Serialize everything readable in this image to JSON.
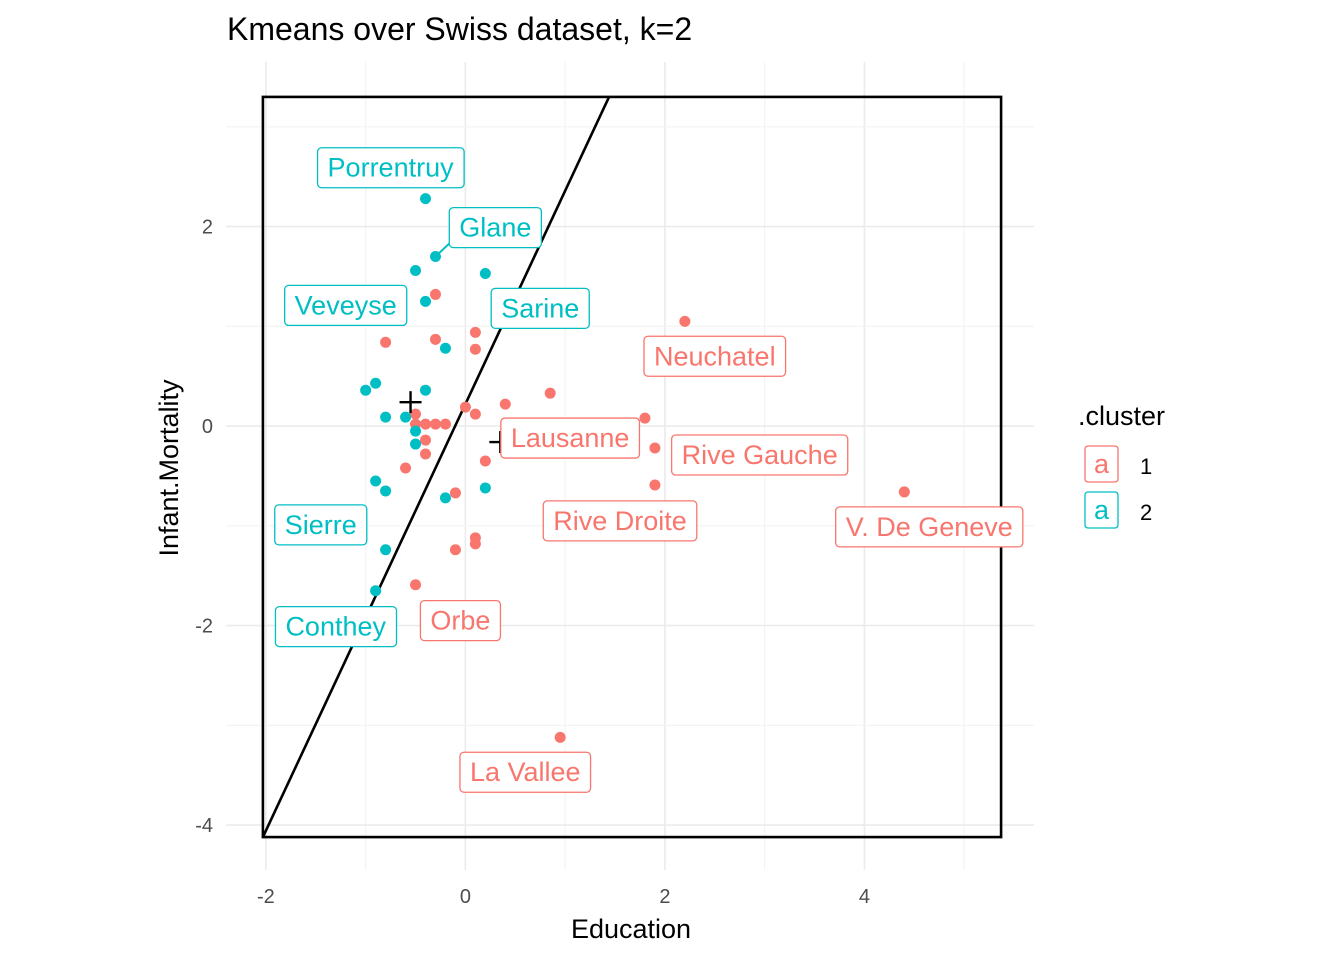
{
  "chart_data": {
    "type": "scatter",
    "title": "Kmeans over Swiss dataset, k=2",
    "xlabel": "Education",
    "ylabel": "Infant.Mortality",
    "xlim": [
      -2.4,
      5.7
    ],
    "ylim": [
      -4.45,
      3.65
    ],
    "x_ticks": [
      -2,
      0,
      2,
      4
    ],
    "x_tick_labels": [
      "-2",
      "0",
      "2",
      "4"
    ],
    "y_ticks": [
      -4,
      -2,
      0,
      2
    ],
    "y_tick_labels": [
      "-4",
      "-2",
      "0",
      "2"
    ],
    "grid": true,
    "legend": {
      "title": ".cluster",
      "position": "right",
      "key_glyph": "a",
      "entries": [
        {
          "name": "1",
          "color": "#f8766d"
        },
        {
          "name": "2",
          "color": "#00bfc4"
        }
      ]
    },
    "colors": {
      "cluster_1": "#f8766d",
      "cluster_2": "#00bfc4"
    },
    "series": [
      {
        "name": "1",
        "color": "#f8766d",
        "points": [
          {
            "x": -0.5,
            "y": 0.12
          },
          {
            "x": -0.5,
            "y": 0.02
          },
          {
            "x": -0.4,
            "y": 0.02
          },
          {
            "x": -0.3,
            "y": 0.02
          },
          {
            "x": -0.2,
            "y": 0.02
          },
          {
            "x": 0.0,
            "y": 0.19
          },
          {
            "x": 0.1,
            "y": 0.12
          },
          {
            "x": -0.4,
            "y": -0.14
          },
          {
            "x": -0.4,
            "y": -0.28
          },
          {
            "x": -0.6,
            "y": -0.42
          },
          {
            "x": 0.2,
            "y": -0.35
          },
          {
            "x": -0.1,
            "y": -0.67
          },
          {
            "x": 0.1,
            "y": -1.12
          },
          {
            "x": 0.1,
            "y": -1.18
          },
          {
            "x": -0.1,
            "y": -1.24
          },
          {
            "x": -0.5,
            "y": -1.59
          },
          {
            "x": 0.1,
            "y": 0.94
          },
          {
            "x": 0.1,
            "y": 0.77
          },
          {
            "x": -0.3,
            "y": 0.87
          },
          {
            "x": -0.3,
            "y": 1.32
          },
          {
            "x": -0.8,
            "y": 0.84
          },
          {
            "x": 0.4,
            "y": 0.22
          },
          {
            "x": 0.85,
            "y": 0.33
          },
          {
            "x": 1.8,
            "y": 0.08
          },
          {
            "x": 1.9,
            "y": -0.22
          },
          {
            "x": 1.9,
            "y": -0.59
          },
          {
            "x": 2.2,
            "y": 1.05
          },
          {
            "x": 4.4,
            "y": -0.66
          },
          {
            "x": 0.95,
            "y": -3.12
          }
        ]
      },
      {
        "name": "2",
        "color": "#00bfc4",
        "points": [
          {
            "x": -0.4,
            "y": 2.28
          },
          {
            "x": -0.3,
            "y": 1.7
          },
          {
            "x": -0.5,
            "y": 1.56
          },
          {
            "x": 0.2,
            "y": 1.53
          },
          {
            "x": -0.4,
            "y": 1.25
          },
          {
            "x": -0.2,
            "y": 0.78
          },
          {
            "x": -0.9,
            "y": 0.43
          },
          {
            "x": -1.0,
            "y": 0.36
          },
          {
            "x": -0.4,
            "y": 0.36
          },
          {
            "x": -0.8,
            "y": 0.09
          },
          {
            "x": -0.6,
            "y": 0.09
          },
          {
            "x": -0.5,
            "y": -0.05
          },
          {
            "x": -0.5,
            "y": -0.18
          },
          {
            "x": -0.9,
            "y": -0.55
          },
          {
            "x": -0.8,
            "y": -0.65
          },
          {
            "x": -0.2,
            "y": -0.72
          },
          {
            "x": 0.2,
            "y": -0.62
          },
          {
            "x": -0.8,
            "y": -1.24
          },
          {
            "x": -0.9,
            "y": -1.65
          }
        ]
      }
    ],
    "centroids": [
      {
        "x": -0.55,
        "y": 0.24
      },
      {
        "x": 0.35,
        "y": -0.16
      }
    ],
    "labels": [
      {
        "text": "Porrentruy",
        "cluster": "2",
        "x": -0.75,
        "y": 2.6
      },
      {
        "text": "Glane",
        "cluster": "2",
        "x": 0.3,
        "y": 2.0
      },
      {
        "text": "Veveyse",
        "cluster": "2",
        "x": -1.2,
        "y": 1.22
      },
      {
        "text": "Sarine",
        "cluster": "2",
        "x": 0.75,
        "y": 1.19
      },
      {
        "text": "Sierre",
        "cluster": "2",
        "x": -1.45,
        "y": -0.98
      },
      {
        "text": "Conthey",
        "cluster": "2",
        "x": -1.3,
        "y": -2.0
      },
      {
        "text": "Neuchatel",
        "cluster": "1",
        "x": 2.5,
        "y": 0.71
      },
      {
        "text": "Lausanne",
        "cluster": "1",
        "x": 1.05,
        "y": -0.11
      },
      {
        "text": "Rive Gauche",
        "cluster": "1",
        "x": 2.95,
        "y": -0.28
      },
      {
        "text": "Rive Droite",
        "cluster": "1",
        "x": 1.55,
        "y": -0.94
      },
      {
        "text": "V. De Geneve",
        "cluster": "1",
        "x": 4.65,
        "y": -1.0
      },
      {
        "text": "Orbe",
        "cluster": "1",
        "x": -0.05,
        "y": -1.94
      },
      {
        "text": "La Vallee",
        "cluster": "1",
        "x": 0.6,
        "y": -3.46
      }
    ],
    "annotations": {
      "rectangle": {
        "x0": -2.03,
        "x1": 5.37,
        "y0": -4.12,
        "y1": 3.3
      },
      "line": {
        "x0": -2.03,
        "y0": -4.12,
        "x1": 1.44,
        "y1": 3.3
      }
    }
  }
}
